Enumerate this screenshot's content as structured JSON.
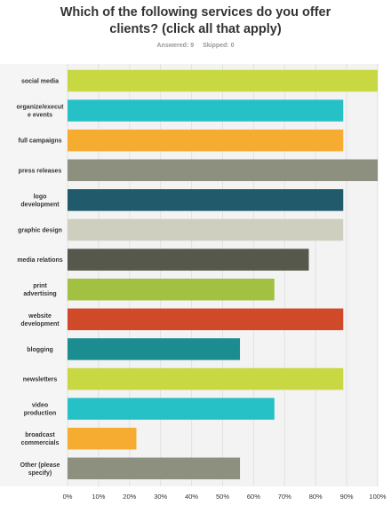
{
  "header": {
    "title_line1": "Which of the following services do you offer",
    "title_line2": "clients? (click all that apply)",
    "answered": "Answered: 9",
    "skipped": "Skipped: 0"
  },
  "chart_data": {
    "type": "bar",
    "orientation": "horizontal",
    "categories": [
      [
        "social media"
      ],
      [
        "organize/execut",
        "e events"
      ],
      [
        "full campaigns"
      ],
      [
        "press releases"
      ],
      [
        "logo",
        "development"
      ],
      [
        "graphic design"
      ],
      [
        "media relations"
      ],
      [
        "print",
        "advertising"
      ],
      [
        "website",
        "development"
      ],
      [
        "blogging"
      ],
      [
        "newsletters"
      ],
      [
        "video",
        "production"
      ],
      [
        "broadcast",
        "commercials"
      ],
      [
        "Other (please",
        "specify)"
      ]
    ],
    "values": [
      100,
      88.9,
      88.9,
      100,
      88.9,
      88.9,
      77.8,
      66.7,
      88.9,
      55.6,
      88.9,
      66.7,
      22.2,
      55.6
    ],
    "colors": [
      "#c7d842",
      "#26c0c7",
      "#f5ac30",
      "#8d8f7f",
      "#215a6a",
      "#cfcfc0",
      "#56584b",
      "#a2c142",
      "#d04a2a",
      "#1b8d91",
      "#c7d842",
      "#26c0c7",
      "#f5ac30",
      "#8d8f7f"
    ],
    "x_ticks": [
      "0%",
      "10%",
      "20%",
      "30%",
      "40%",
      "50%",
      "60%",
      "70%",
      "80%",
      "90%",
      "100%"
    ],
    "xlim": [
      0,
      100
    ],
    "grid": true
  }
}
